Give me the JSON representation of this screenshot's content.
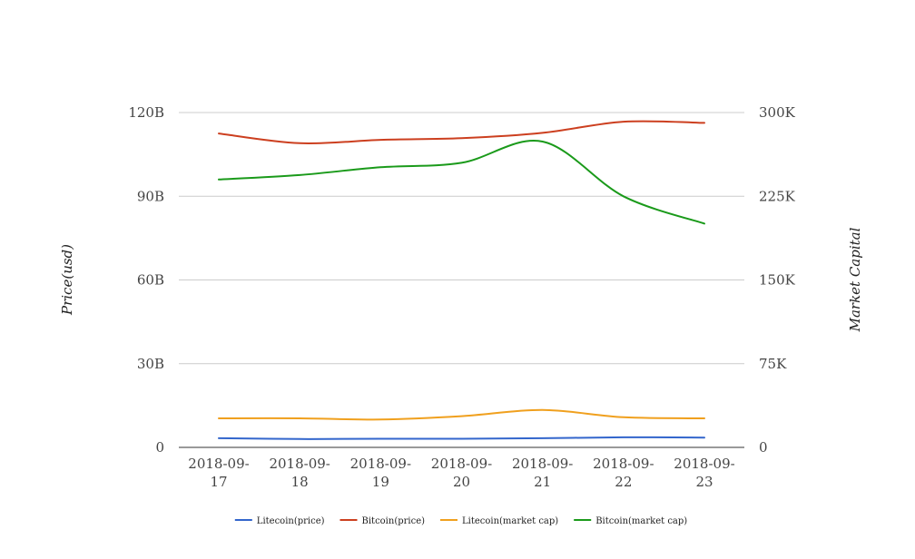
{
  "chart_data": {
    "type": "line",
    "title": "",
    "x": [
      "2018-09-17",
      "2018-09-18",
      "2018-09-19",
      "2018-09-20",
      "2018-09-21",
      "2018-09-22",
      "2018-09-23"
    ],
    "x_tick_labels": [
      [
        "2018-09-",
        "17"
      ],
      [
        "2018-09-",
        "18"
      ],
      [
        "2018-09-",
        "19"
      ],
      [
        "2018-09-",
        "20"
      ],
      [
        "2018-09-",
        "21"
      ],
      [
        "2018-09-",
        "22"
      ],
      [
        "2018-09-",
        "23"
      ]
    ],
    "y_left": {
      "label": "Price(usd)",
      "range": [
        0,
        120000000000
      ],
      "ticks": [
        0,
        30000000000,
        60000000000,
        90000000000,
        120000000000
      ],
      "tick_labels": [
        "0",
        "30B",
        "60B",
        "90B",
        "120B"
      ]
    },
    "y_right": {
      "label": "Market Capital",
      "range": [
        0,
        300000
      ],
      "ticks": [
        0,
        75000,
        150000,
        225000,
        300000
      ],
      "tick_labels": [
        "0",
        "75K",
        "150K",
        "225K",
        "300K"
      ]
    },
    "grid": true,
    "legend_position": "bottom",
    "series": [
      {
        "name": "Litecoin(price)",
        "axis": "left",
        "color": "#3366cc",
        "values": [
          3300000000,
          3000000000,
          3100000000,
          3100000000,
          3300000000,
          3600000000,
          3500000000
        ]
      },
      {
        "name": "Bitcoin(price)",
        "axis": "left",
        "color": "#cc3f1f",
        "values": [
          112500000000,
          109000000000,
          110200000000,
          110800000000,
          112700000000,
          116700000000,
          116300000000
        ]
      },
      {
        "name": "Litecoin(market cap)",
        "axis": "right",
        "color": "#f0a01e",
        "values": [
          26000,
          26000,
          25000,
          28000,
          33500,
          27000,
          26000
        ]
      },
      {
        "name": "Bitcoin(market cap)",
        "axis": "right",
        "color": "#1a9a1a",
        "values": [
          240000,
          244000,
          251000,
          255000,
          274000,
          225000,
          200500
        ]
      }
    ]
  }
}
